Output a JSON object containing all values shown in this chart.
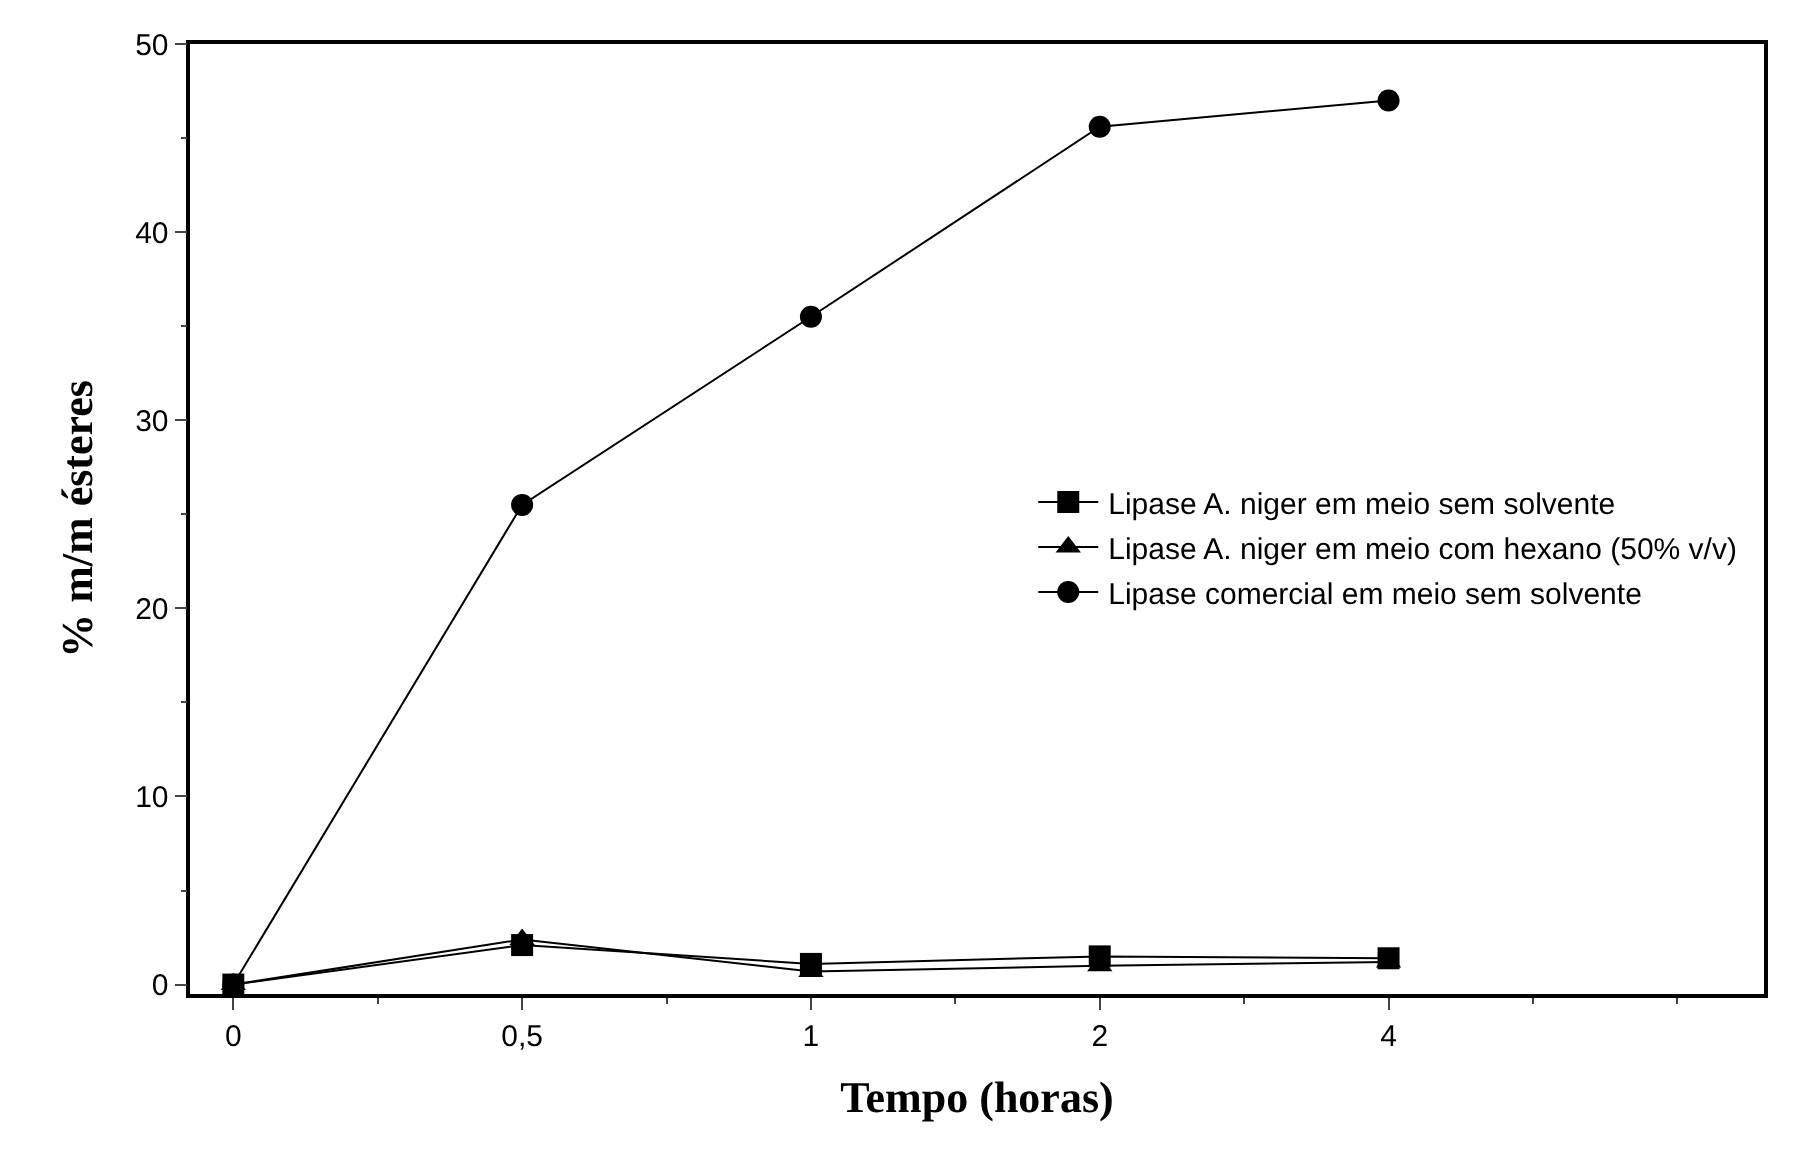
{
  "chart_data": {
    "type": "line",
    "xlabel": "Tempo (horas)",
    "ylabel": "% m/m ésteres",
    "categories": [
      "0",
      "0,5",
      "1",
      "2",
      "4"
    ],
    "series": [
      {
        "name": "Lipase A. niger em meio sem solvente",
        "color": "#000000",
        "marker": "square",
        "values": [
          0,
          2.1,
          1.1,
          1.5,
          1.4
        ]
      },
      {
        "name": "Lipase A. niger em meio com hexano (50% v/v)",
        "color": "#000000",
        "marker": "triangle",
        "values": [
          0,
          2.4,
          0.7,
          1.0,
          1.2
        ]
      },
      {
        "name": "Lipase comercial em meio sem solvente",
        "color": "#000000",
        "marker": "circle",
        "values": [
          0,
          25.5,
          35.5,
          45.6,
          47.0
        ]
      }
    ],
    "ylim": [
      -0.5,
      50
    ],
    "yticks": [
      0,
      10,
      20,
      30,
      40,
      50
    ],
    "legend": "right",
    "line_style": "solid"
  }
}
